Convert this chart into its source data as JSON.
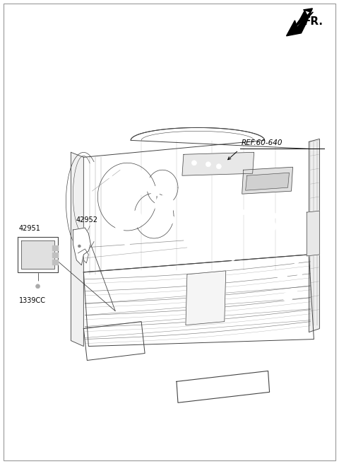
{
  "bg_color": "#ffffff",
  "border_color": "#999999",
  "fig_width": 4.8,
  "fig_height": 6.56,
  "dpi": 100,
  "fr_label": "FR.",
  "ref_label": "REF.60-640",
  "part_42951_label": "42951",
  "part_42952_label": "42952",
  "part_1339CC_label": "1339CC",
  "line_color": "#444444",
  "text_color": "#000000",
  "font_size_labels": 7.0,
  "font_size_fr": 11,
  "thin_lw": 0.5,
  "med_lw": 0.7,
  "thick_lw": 1.0
}
